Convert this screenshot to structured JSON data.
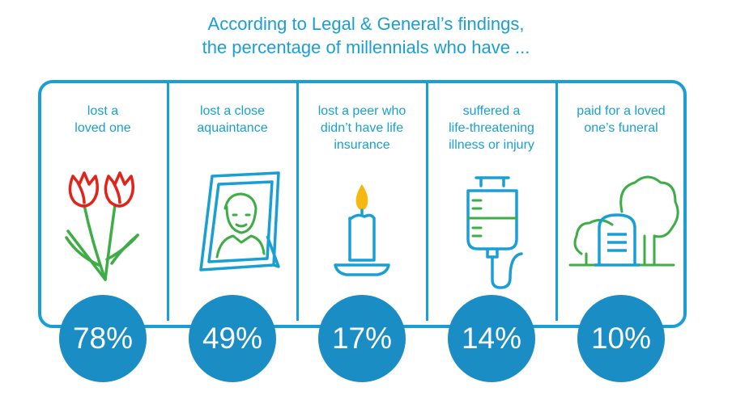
{
  "title": {
    "line1": "According to Legal & General’s findings,",
    "line2": "the percentage of millennials who have ..."
  },
  "colors": {
    "accent": "#1a9fd4",
    "circle": "#1a8dc5",
    "icon_red": "#e1231a",
    "icon_green": "#3dad46",
    "icon_yellow": "#f6b711"
  },
  "chart_data": {
    "type": "bar",
    "title": "According to Legal & General’s findings, the percentage of millennials who have ...",
    "categories": [
      "lost a loved one",
      "lost a close aquaintance",
      "lost a peer who didn’t have life insurance",
      "suffered a life-threatening illness or injury",
      "paid for a loved one’s funeral"
    ],
    "values": [
      78,
      49,
      17,
      14,
      10
    ],
    "value_labels": [
      "78%",
      "49%",
      "17%",
      "14%",
      "10%"
    ],
    "unit": "%"
  },
  "panels": [
    {
      "label_lines": [
        "lost a",
        "loved one"
      ],
      "icon": "tulips-icon"
    },
    {
      "label_lines": [
        "lost a close",
        "aquaintance"
      ],
      "icon": "portrait-frame-icon"
    },
    {
      "label_lines": [
        "lost a peer who",
        "didn’t have life",
        "insurance"
      ],
      "icon": "candle-icon"
    },
    {
      "label_lines": [
        "suffered a",
        "life-threatening",
        "illness or injury"
      ],
      "icon": "iv-drip-icon"
    },
    {
      "label_lines": [
        "paid for a loved",
        "one’s funeral"
      ],
      "icon": "gravestone-trees-icon"
    }
  ]
}
